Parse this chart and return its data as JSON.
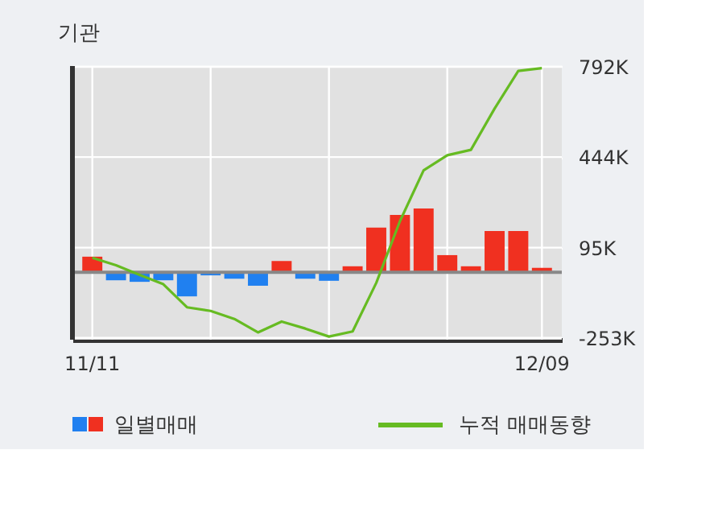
{
  "chart_data": {
    "type": "bar",
    "title": "기관",
    "categories": [
      "11/11",
      null,
      null,
      null,
      null,
      null,
      null,
      null,
      null,
      null,
      null,
      null,
      null,
      null,
      null,
      null,
      null,
      null,
      null,
      "12/09"
    ],
    "series": [
      {
        "name": "일별매매",
        "type": "bar",
        "colors": [
          "#f03020",
          "#2080f0",
          "#2080f0",
          "#2080f0",
          "#2080f0",
          "#2080f0",
          "#2080f0",
          "#2080f0",
          "#f03020",
          "#2080f0",
          "#2080f0",
          "#f03020",
          "#f03020",
          "#f03020",
          "#f03020",
          "#f03020",
          "#f03020",
          "#f03020",
          "#f03020",
          "#f03020"
        ],
        "values": [
          60000,
          -31000,
          -37000,
          -31000,
          -93000,
          -12000,
          -25000,
          -52000,
          43000,
          -25000,
          -33000,
          23000,
          172000,
          221000,
          246000,
          66000,
          23000,
          159000,
          159000,
          17000
        ]
      },
      {
        "name": "누적 매매동향",
        "type": "line",
        "color": "#66bb22",
        "values": [
          56000,
          27000,
          -10000,
          -46000,
          -135000,
          -149000,
          -180000,
          -232000,
          -190000,
          -217000,
          -248000,
          -228000,
          -41000,
          197000,
          393000,
          451000,
          472000,
          631000,
          776000,
          787000
        ]
      }
    ],
    "ylim": [
      -260000,
      795000
    ],
    "yticks": [
      {
        "value": 792000,
        "label": "792K"
      },
      {
        "value": 444000,
        "label": "444K"
      },
      {
        "value": 95000,
        "label": "95K"
      },
      {
        "value": -253000,
        "label": "-253K"
      }
    ],
    "ref_lines": [
      {
        "axis": "y",
        "value": 0,
        "color": "#888888"
      }
    ],
    "grid": true,
    "legend": "bottom"
  }
}
